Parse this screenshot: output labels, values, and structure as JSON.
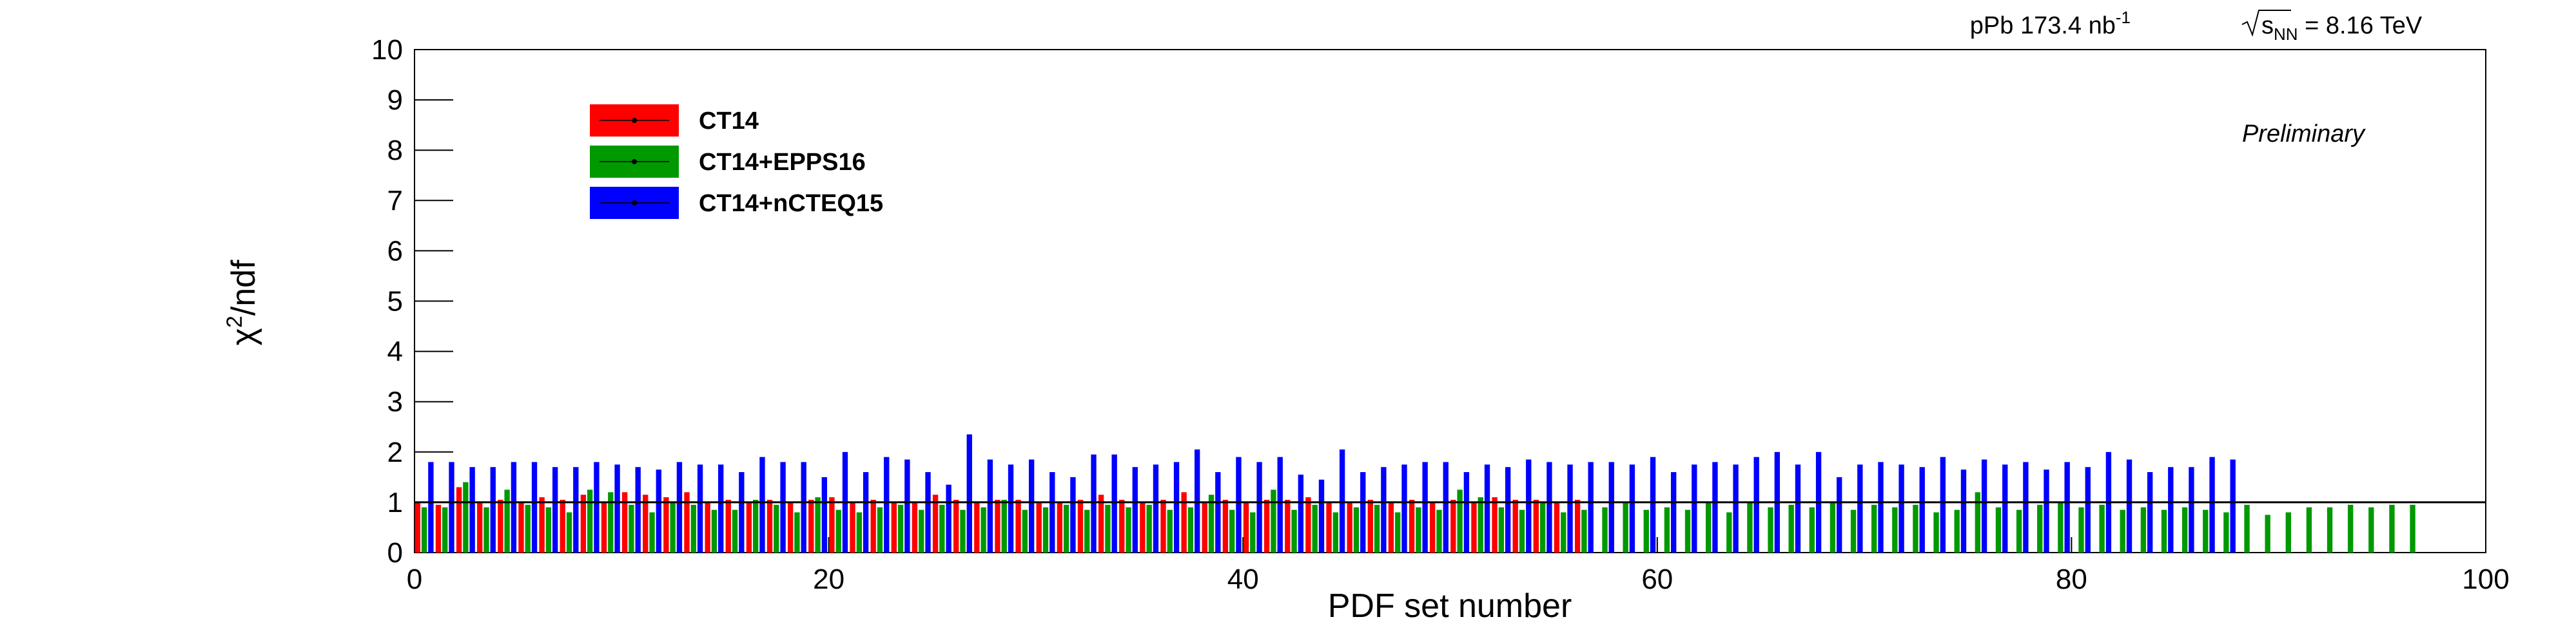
{
  "chart_data": {
    "type": "bar",
    "xlabel": "PDF set number",
    "ylabel": {
      "base": "χ",
      "sup": "2",
      "rest": "/ndf"
    },
    "lumi": {
      "base": "pPb 173.4 nb",
      "sup": "-1"
    },
    "energy": {
      "base": "s",
      "sub": "NN",
      "rest": " = 8.16 TeV"
    },
    "annotation": "Preliminary",
    "xlim": [
      0,
      100
    ],
    "xticks": [
      0,
      20,
      40,
      60,
      80,
      100
    ],
    "ylim": [
      0,
      10
    ],
    "yticks": [
      0,
      1,
      2,
      3,
      4,
      5,
      6,
      7,
      8,
      9,
      10
    ],
    "reference_line": 1,
    "series": [
      {
        "name": "CT14",
        "color": "#ff0000",
        "values": [
          1.0,
          0.95,
          1.3,
          1.0,
          1.05,
          1.0,
          1.1,
          1.05,
          1.15,
          1.0,
          1.2,
          1.15,
          1.1,
          1.2,
          1.0,
          1.05,
          1.0,
          1.05,
          1.0,
          1.05,
          1.1,
          1.0,
          1.05,
          1.0,
          1.0,
          1.15,
          1.05,
          1.0,
          1.05,
          1.05,
          1.0,
          1.0,
          1.05,
          1.15,
          1.05,
          1.0,
          1.05,
          1.2,
          1.0,
          1.05,
          1.0,
          1.05,
          1.05,
          1.1,
          1.0,
          1.0,
          1.05,
          1.0,
          1.05,
          1.0,
          1.05,
          1.0,
          1.1,
          1.05,
          1.05,
          1.0,
          1.05
        ]
      },
      {
        "name": "CT14+EPPS16",
        "color": "#009900",
        "values": [
          0.9,
          0.9,
          1.4,
          0.9,
          1.25,
          0.95,
          0.9,
          0.8,
          1.25,
          1.2,
          0.95,
          0.8,
          1.0,
          0.95,
          0.85,
          0.85,
          1.05,
          0.95,
          0.8,
          1.1,
          0.85,
          0.8,
          0.9,
          0.95,
          0.85,
          0.95,
          0.85,
          0.9,
          1.05,
          0.85,
          0.9,
          0.95,
          0.85,
          0.95,
          0.9,
          0.95,
          0.85,
          0.9,
          1.15,
          0.85,
          0.8,
          1.25,
          0.85,
          0.95,
          0.8,
          0.9,
          0.95,
          0.8,
          0.9,
          0.85,
          1.25,
          1.1,
          0.9,
          0.85,
          1.0,
          0.8,
          0.85,
          0.9,
          1.0,
          0.85,
          0.9,
          0.85,
          1.0,
          0.8,
          1.0,
          0.9,
          0.95,
          0.9,
          1.0,
          0.85,
          0.95,
          0.9,
          0.95,
          0.8,
          0.85,
          1.2,
          0.9,
          0.85,
          0.95,
          1.0,
          0.9,
          0.95,
          0.85,
          0.9,
          0.85,
          0.9,
          0.85,
          0.8,
          0.95,
          0.75,
          0.8,
          0.9,
          0.9,
          0.95,
          0.9,
          0.95,
          0.95
        ]
      },
      {
        "name": "CT14+nCTEQ15",
        "color": "#0000ff",
        "values": [
          1.8,
          1.8,
          1.7,
          1.7,
          1.8,
          1.8,
          1.7,
          1.7,
          1.8,
          1.75,
          1.7,
          1.65,
          1.8,
          1.75,
          1.75,
          1.6,
          1.9,
          1.8,
          1.8,
          1.5,
          2.0,
          1.6,
          1.9,
          1.85,
          1.6,
          1.35,
          2.35,
          1.85,
          1.75,
          1.85,
          1.6,
          1.5,
          1.95,
          1.95,
          1.7,
          1.75,
          1.8,
          2.05,
          1.6,
          1.9,
          1.8,
          1.9,
          1.55,
          1.45,
          2.05,
          1.6,
          1.7,
          1.75,
          1.8,
          1.8,
          1.6,
          1.75,
          1.7,
          1.85,
          1.8,
          1.75,
          1.8,
          1.8,
          1.75,
          1.9,
          1.6,
          1.75,
          1.8,
          1.75,
          1.9,
          2.0,
          1.75,
          2.0,
          1.5,
          1.75,
          1.8,
          1.75,
          1.7,
          1.9,
          1.65,
          1.85,
          1.75,
          1.8,
          1.65,
          1.8,
          1.7,
          2.0,
          1.85,
          1.6,
          1.7,
          1.7,
          1.9,
          1.85
        ]
      }
    ]
  }
}
